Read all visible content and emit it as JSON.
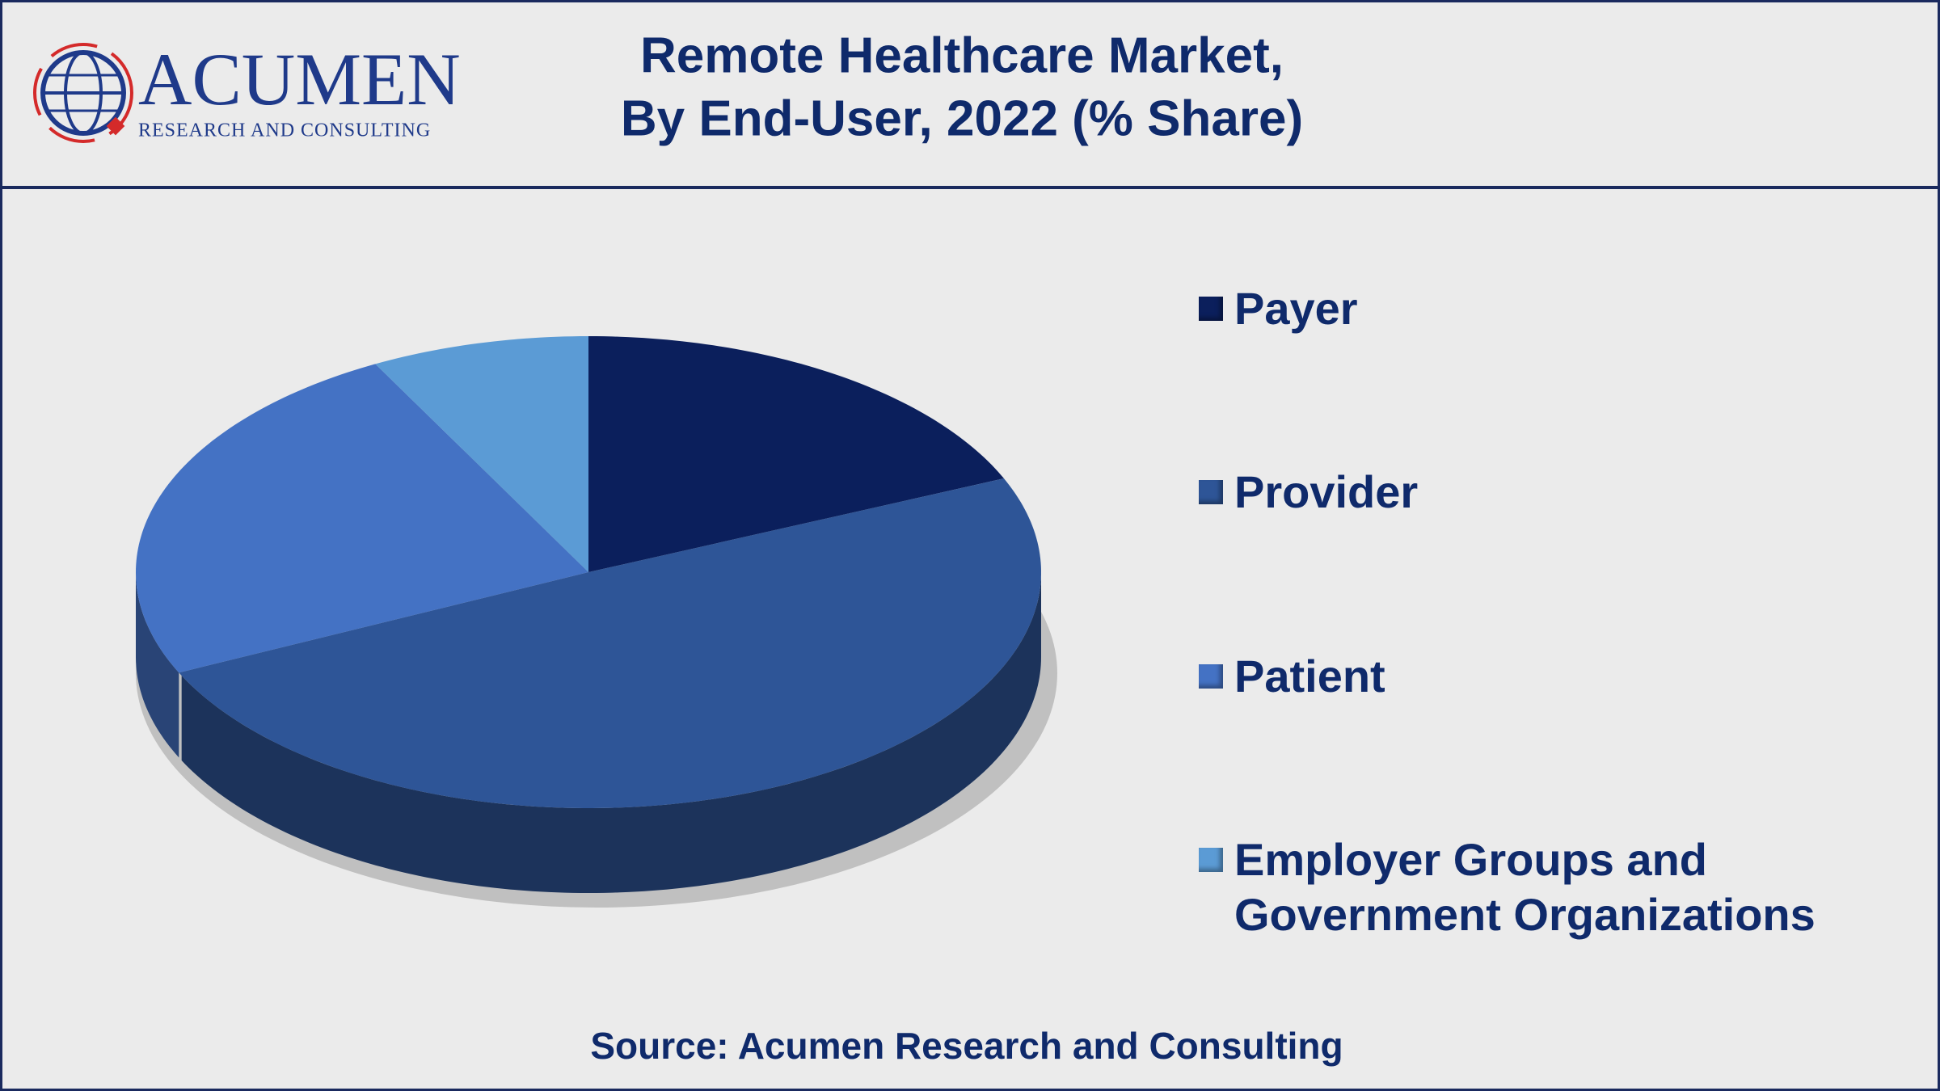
{
  "logo": {
    "name": "ACUMEN",
    "tagline": "RESEARCH AND CONSULTING"
  },
  "chart_data": {
    "type": "pie",
    "title": [
      "Remote Healthcare Market,",
      "By End-User, 2022 (% Share)"
    ],
    "categories": [
      "Payer",
      "Provider",
      "Patient",
      "Employer Groups and Government Organizations"
    ],
    "values": [
      18.5,
      49.5,
      24.2,
      7.8
    ],
    "colors": [
      "#0b1f5c",
      "#2e5597",
      "#4472c4",
      "#5b9bd5"
    ],
    "source": "Source: Acumen Research and Consulting"
  }
}
